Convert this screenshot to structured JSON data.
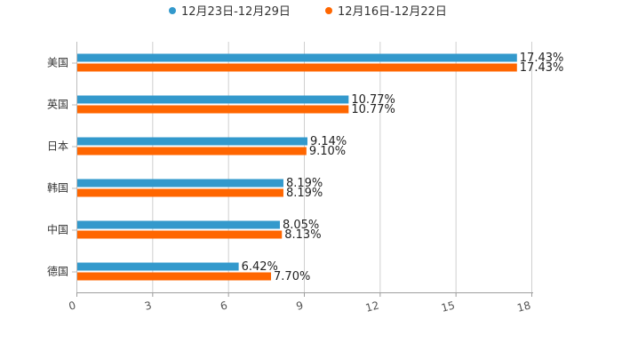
{
  "chart_data": {
    "type": "bar",
    "orientation": "horizontal",
    "title": "",
    "xlabel": "",
    "ylabel": "",
    "categories": [
      "美国",
      "英国",
      "日本",
      "韩国",
      "中国",
      "德国"
    ],
    "series": [
      {
        "name": "12月23日-12月29日",
        "color": "#3399CC",
        "values": [
          17.43,
          10.77,
          9.14,
          8.19,
          8.05,
          6.42
        ],
        "labels": [
          "17.43%",
          "10.77%",
          "9.14%",
          "8.19%",
          "8.05%",
          "6.42%"
        ]
      },
      {
        "name": "12月16日-12月22日",
        "color": "#FF6600",
        "values": [
          17.43,
          10.77,
          9.1,
          8.19,
          8.13,
          7.7
        ],
        "labels": [
          "17.43%",
          "10.77%",
          "9.10%",
          "8.19%",
          "8.13%",
          "7.70%"
        ]
      }
    ],
    "xlim": [
      0,
      18
    ],
    "xticks": [
      0,
      3,
      6,
      9,
      12,
      15,
      18
    ],
    "xtick_labels": [
      "0",
      "3",
      "6",
      "9",
      "12",
      "15",
      "18"
    ],
    "grid": "vertical",
    "legend_position": "top-center"
  }
}
